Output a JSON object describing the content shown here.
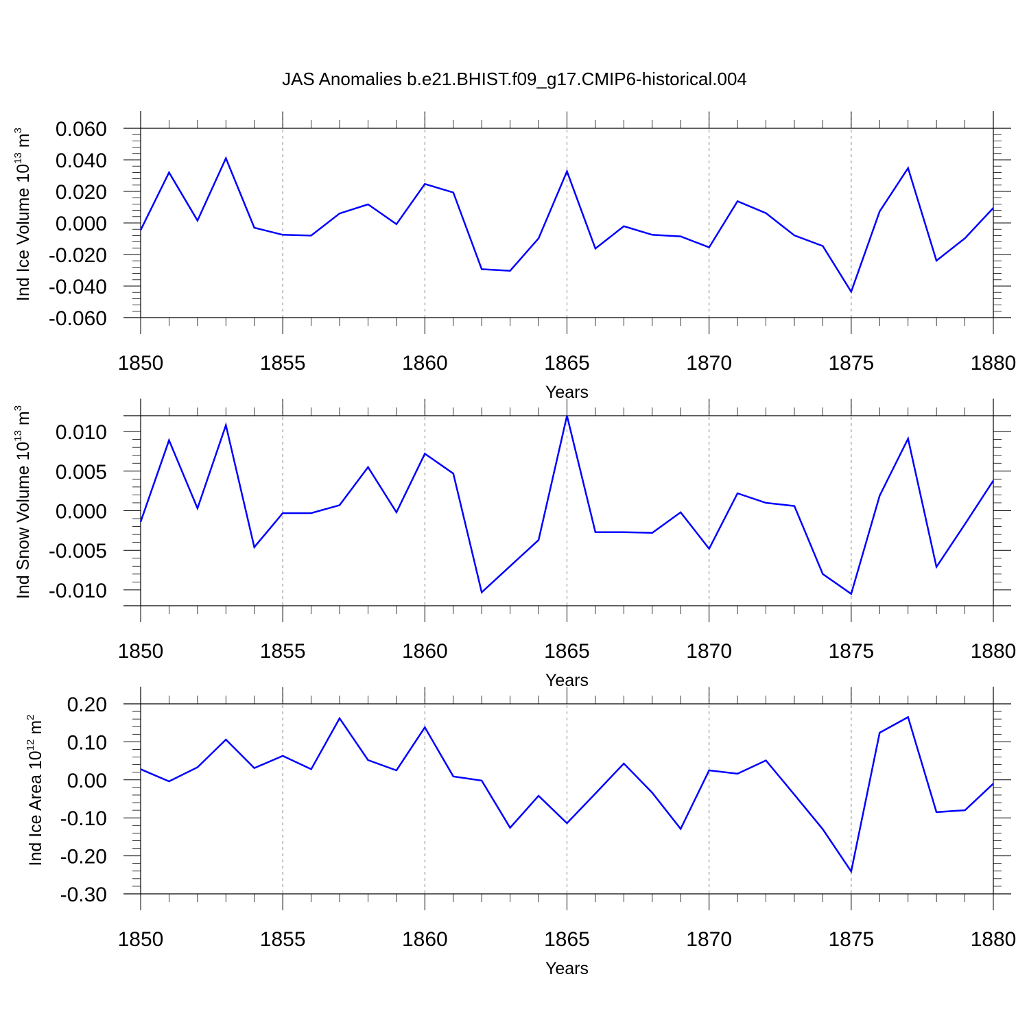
{
  "figure": {
    "title": "JAS Anomalies b.e21.BHIST.f09_g17.CMIP6-historical.004",
    "line_color": "#0000ff",
    "grid_color": "#808080"
  },
  "chart_data": [
    {
      "type": "line",
      "xlabel": "Years",
      "ylabel_parts": {
        "main": "Ind Ice Volume 10",
        "exp": "13",
        "unit": " m",
        "unit_exp": "3"
      },
      "ylim": [
        -0.06,
        0.06
      ],
      "xlim": [
        1850,
        1880
      ],
      "yticks": [
        -0.06,
        -0.04,
        -0.02,
        0.0,
        0.02,
        0.04,
        0.06
      ],
      "ytick_labels": [
        "-0.060",
        "-0.040",
        "-0.020",
        "0.000",
        "0.020",
        "0.040",
        "0.060"
      ],
      "xticks": [
        1850,
        1855,
        1860,
        1865,
        1870,
        1875,
        1880
      ],
      "xtick_labels": [
        "1850",
        "1855",
        "1860",
        "1865",
        "1870",
        "1875",
        "1880"
      ],
      "x": [
        1850,
        1851,
        1852,
        1853,
        1854,
        1855,
        1856,
        1857,
        1858,
        1859,
        1860,
        1861,
        1862,
        1863,
        1864,
        1865,
        1866,
        1867,
        1868,
        1869,
        1870,
        1871,
        1872,
        1873,
        1874,
        1875,
        1876,
        1877,
        1878,
        1879,
        1880
      ],
      "y": [
        -0.0045,
        0.032,
        0.0015,
        0.041,
        -0.003,
        -0.0075,
        -0.008,
        0.006,
        0.0118,
        -0.0008,
        0.0247,
        0.0193,
        -0.0293,
        -0.0303,
        -0.0098,
        0.0327,
        -0.0162,
        -0.0021,
        -0.0075,
        -0.0085,
        -0.0155,
        0.0138,
        0.0062,
        -0.0079,
        -0.0146,
        -0.0436,
        0.0073,
        0.0348,
        -0.0239,
        -0.0097,
        0.0095
      ],
      "grid": "vertical dashed at major x ticks"
    },
    {
      "type": "line",
      "xlabel": "Years",
      "ylabel_parts": {
        "main": "Ind Snow Volume 10",
        "exp": "13",
        "unit": " m",
        "unit_exp": "3"
      },
      "ylim": [
        -0.012,
        0.012
      ],
      "xlim": [
        1850,
        1880
      ],
      "yticks": [
        -0.01,
        -0.005,
        0.0,
        0.005,
        0.01
      ],
      "ytick_labels": [
        "-0.010",
        "-0.005",
        "0.000",
        "0.005",
        "0.010"
      ],
      "xticks": [
        1850,
        1855,
        1860,
        1865,
        1870,
        1875,
        1880
      ],
      "xtick_labels": [
        "1850",
        "1855",
        "1860",
        "1865",
        "1870",
        "1875",
        "1880"
      ],
      "x": [
        1850,
        1851,
        1852,
        1853,
        1854,
        1855,
        1856,
        1857,
        1858,
        1859,
        1860,
        1861,
        1862,
        1863,
        1864,
        1865,
        1866,
        1867,
        1868,
        1869,
        1870,
        1871,
        1872,
        1873,
        1874,
        1875,
        1876,
        1877,
        1878,
        1879,
        1880
      ],
      "y": [
        -0.0014,
        0.0089,
        0.0003,
        0.0108,
        -0.0046,
        -0.0003,
        -0.0003,
        0.0007,
        0.0055,
        -0.0002,
        0.0072,
        0.0047,
        -0.0103,
        -0.007,
        -0.0037,
        0.012,
        -0.0027,
        -0.0027,
        -0.0028,
        -0.0002,
        -0.0048,
        0.0022,
        0.001,
        0.0006,
        -0.008,
        -0.0105,
        0.0019,
        0.0091,
        -0.0071,
        -0.0017,
        0.0038
      ],
      "grid": "vertical dashed at major x ticks"
    },
    {
      "type": "line",
      "xlabel": "Years",
      "ylabel_parts": {
        "main": "Ind Ice Area 10",
        "exp": "12",
        "unit": " m",
        "unit_exp": "2"
      },
      "ylim": [
        -0.3,
        0.2
      ],
      "xlim": [
        1850,
        1880
      ],
      "yticks": [
        -0.3,
        -0.2,
        -0.1,
        0.0,
        0.1,
        0.2
      ],
      "ytick_labels": [
        "-0.30",
        "-0.20",
        "-0.10",
        "0.00",
        "0.10",
        "0.20"
      ],
      "xticks": [
        1850,
        1855,
        1860,
        1865,
        1870,
        1875,
        1880
      ],
      "xtick_labels": [
        "1850",
        "1855",
        "1860",
        "1865",
        "1870",
        "1875",
        "1880"
      ],
      "x": [
        1850,
        1851,
        1852,
        1853,
        1854,
        1855,
        1856,
        1857,
        1858,
        1859,
        1860,
        1861,
        1862,
        1863,
        1864,
        1865,
        1866,
        1867,
        1868,
        1869,
        1870,
        1871,
        1872,
        1873,
        1874,
        1875,
        1876,
        1877,
        1878,
        1879,
        1880
      ],
      "y": [
        0.028,
        -0.004,
        0.033,
        0.106,
        0.031,
        0.063,
        0.028,
        0.162,
        0.052,
        0.025,
        0.138,
        0.009,
        -0.002,
        -0.126,
        -0.042,
        -0.114,
        -0.036,
        0.043,
        -0.034,
        -0.129,
        0.025,
        0.016,
        0.051,
        -0.039,
        -0.13,
        -0.241,
        0.124,
        0.165,
        -0.085,
        -0.08,
        -0.01
      ],
      "grid": "vertical dashed at major x ticks"
    }
  ]
}
